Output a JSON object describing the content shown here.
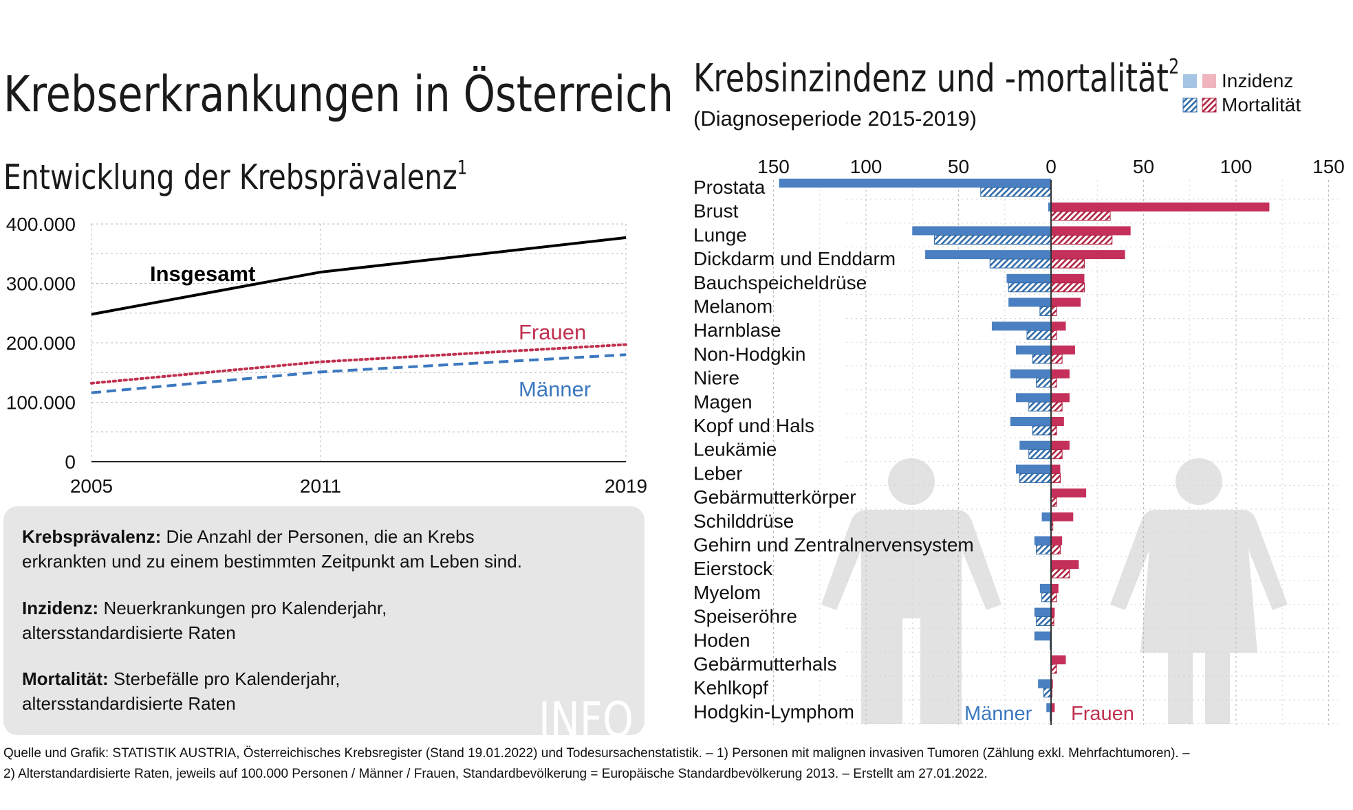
{
  "left": {
    "title": "Krebserkrankungen in Österreich",
    "subtitle": "Entwicklung der Krebsprävalenz",
    "subtitle_sup": "1",
    "chart_data": {
      "type": "line",
      "x": [
        2005,
        2011,
        2019
      ],
      "xticks": [
        "2005",
        "2011",
        "2019"
      ],
      "ylim": [
        0,
        400000
      ],
      "yticks": [
        {
          "v": 0,
          "label": "0"
        },
        {
          "v": 100000,
          "label": "100.000"
        },
        {
          "v": 200000,
          "label": "200.000"
        },
        {
          "v": 300000,
          "label": "300.000"
        },
        {
          "v": 400000,
          "label": "400.000"
        }
      ],
      "series": [
        {
          "name": "Insgesamt",
          "color": "#000000",
          "dash": "solid",
          "values": [
            248000,
            319000,
            377000
          ]
        },
        {
          "name": "Frauen",
          "color": "#c0304f",
          "dash": "dotted",
          "values": [
            132000,
            168000,
            197000
          ]
        },
        {
          "name": "Männer",
          "color": "#3b78bf",
          "dash": "dashed",
          "values": [
            116000,
            151000,
            180000
          ]
        }
      ]
    },
    "info": {
      "p1_bold": "Krebsprävalenz:",
      "p1_line1": " Die Anzahl der Personen, die an Krebs",
      "p1_line2": "erkrankten und zu einem bestimmten Zeitpunkt am Leben sind.",
      "p2_bold": "Inzidenz:",
      "p2_line1": " Neuerkrankungen pro Kalenderjahr,",
      "p2_line2": "altersstandardisierte Raten",
      "p3_bold": "Mortalität:",
      "p3_line1": " Sterbefälle pro Kalenderjahr,",
      "p3_line2": "altersstandardisierte Raten",
      "watermark": "INFO"
    }
  },
  "right": {
    "title": "Krebsinzindenz und -mortalität",
    "title_sup": "2",
    "subtitle": "(Diagnoseperiode 2015-2019)",
    "legend": {
      "incidence": "Inzidenz",
      "mortality": "Mortalität"
    },
    "label_men": "Männer",
    "label_women": "Frauen",
    "colors": {
      "men": "#4a7fc1",
      "women": "#c4305a",
      "men_light": "#a6c4e4",
      "women_light": "#f0b4bf"
    },
    "chart_data": {
      "type": "bar",
      "xlim": [
        -150,
        150
      ],
      "xticks": [
        {
          "v": -150,
          "label": "150"
        },
        {
          "v": -100,
          "label": "100"
        },
        {
          "v": -50,
          "label": "50"
        },
        {
          "v": 0,
          "label": "0"
        },
        {
          "v": 50,
          "label": "50"
        },
        {
          "v": 100,
          "label": "100"
        },
        {
          "v": 150,
          "label": "150"
        }
      ],
      "categories": [
        "Prostata",
        "Brust",
        "Lunge",
        "Dickdarm und Enddarm",
        "Bauchspeicheldrüse",
        "Melanom",
        "Harnblase",
        "Non-Hodgkin",
        "Niere",
        "Magen",
        "Kopf und Hals",
        "Leukämie",
        "Leber",
        "Gebärmutterkörper",
        "Schilddrüse",
        "Gehirn und Zentralnervensystem",
        "Eierstock",
        "Myelom",
        "Speiseröhre",
        "Hoden",
        "Gebärmutterhals",
        "Kehlkopf",
        "Hodgkin-Lymphom"
      ],
      "series": [
        {
          "name": "Männer Inzidenz",
          "values": [
            147,
            1.5,
            75,
            68,
            24,
            23,
            32,
            19,
            22,
            19,
            22,
            17,
            19,
            0,
            5,
            9,
            0,
            6,
            9,
            9,
            0,
            7,
            2.5
          ]
        },
        {
          "name": "Männer Mortalität",
          "values": [
            38,
            0,
            63,
            33,
            23,
            6,
            13,
            10,
            8,
            12,
            10,
            12,
            17,
            0,
            0.5,
            8,
            0,
            5,
            8,
            0.5,
            0,
            4,
            0.5
          ]
        },
        {
          "name": "Frauen Inzidenz",
          "values": [
            0,
            118,
            43,
            40,
            18,
            16,
            8,
            13,
            10,
            10,
            7,
            10,
            5,
            19,
            12,
            6,
            15,
            4,
            2,
            0,
            8,
            1,
            2
          ]
        },
        {
          "name": "Frauen Mortalität",
          "values": [
            0,
            32,
            33,
            18,
            18,
            3,
            3,
            6,
            3,
            6,
            3,
            6,
            5,
            3,
            1,
            5,
            10,
            3,
            1.5,
            0,
            3,
            0.5,
            0.3
          ]
        }
      ]
    }
  },
  "footer": {
    "line1": "Quelle und Grafik: STATISTIK AUSTRIA, Österreichisches Krebsregister (Stand 19.01.2022) und Todesursachenstatistik. – 1) Personen mit malignen invasiven Tumoren (Zählung exkl. Mehrfachtumoren). –",
    "line2": "2) Alterstandardisierte Raten, jeweils auf 100.000 Personen / Männer / Frauen, Standardbevölkerung = Europäische Standardbevölkerung 2013. – Erstellt am 27.01.2022."
  }
}
